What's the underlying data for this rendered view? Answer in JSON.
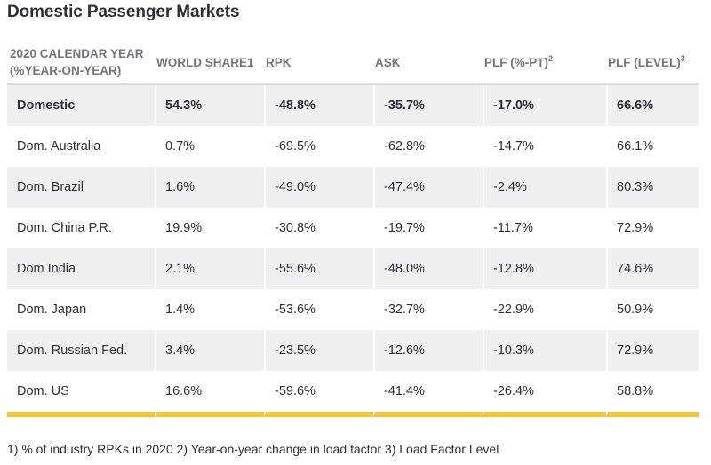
{
  "title": "Domestic Passenger Markets",
  "accent_color": "#f4c431",
  "header_text_color": "#747480",
  "row_shade_color": "#f0f0f1",
  "table": {
    "headers": [
      {
        "line1": "2020 CALENDAR YEAR",
        "line2": "(%YEAR-ON-YEAR)",
        "sup": ""
      },
      {
        "line1": "WORLD SHARE1",
        "line2": "",
        "sup": ""
      },
      {
        "line1": "RPK",
        "line2": "",
        "sup": ""
      },
      {
        "line1": "ASK",
        "line2": "",
        "sup": ""
      },
      {
        "line1": "PLF (%-PT)",
        "line2": "",
        "sup": "2"
      },
      {
        "line1": "PLF (LEVEL)",
        "line2": "",
        "sup": "3"
      }
    ],
    "rows": [
      {
        "cells": [
          "Domestic",
          "54.3%",
          "-48.8%",
          "-35.7%",
          "-17.0%",
          "66.6%"
        ]
      },
      {
        "cells": [
          "Dom. Australia",
          "0.7%",
          "-69.5%",
          "-62.8%",
          "-14.7%",
          "66.1%"
        ]
      },
      {
        "cells": [
          "Dom. Brazil",
          "1.6%",
          "-49.0%",
          "-47.4%",
          "-2.4%",
          "80.3%"
        ]
      },
      {
        "cells": [
          "Dom. China P.R.",
          "19.9%",
          "-30.8%",
          "-19.7%",
          "-11.7%",
          "72.9%"
        ]
      },
      {
        "cells": [
          "Dom India",
          "2.1%",
          "-55.6%",
          "-48.0%",
          "-12.8%",
          "74.6%"
        ]
      },
      {
        "cells": [
          "Dom. Japan",
          "1.4%",
          "-53.6%",
          "-32.7%",
          "-22.9%",
          "50.9%"
        ]
      },
      {
        "cells": [
          "Dom. Russian Fed.",
          "3.4%",
          "-23.5%",
          "-12.6%",
          "-10.3%",
          "72.9%"
        ]
      },
      {
        "cells": [
          "Dom. US",
          "16.6%",
          "-59.6%",
          "-41.4%",
          "-26.4%",
          "58.8%"
        ]
      }
    ]
  },
  "footnote": "1) % of industry RPKs in 2020   2) Year-on-year change in load factor 3) Load Factor Level"
}
